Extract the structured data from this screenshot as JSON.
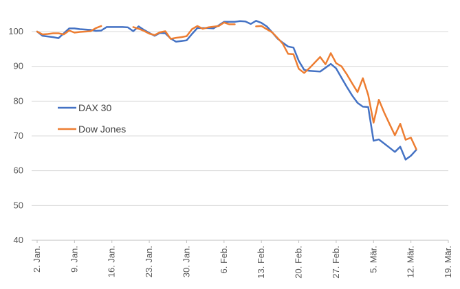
{
  "chart_data": {
    "type": "line",
    "title": "",
    "xlabel": "",
    "ylabel": "",
    "ylim": [
      40,
      100
    ],
    "yticks": [
      40,
      50,
      60,
      70,
      80,
      90,
      100
    ],
    "grid": "horizontal",
    "legend_position": "left-middle",
    "x_tick_labels": [
      "2. Jan.",
      "9. Jan.",
      "16. Jan.",
      "23. Jan.",
      "30. Jan.",
      "6. Feb.",
      "13. Feb.",
      "20. Feb.",
      "27. Feb.",
      "5. Mär.",
      "12. Mär.",
      "19. Mär."
    ],
    "x_range": [
      0,
      77
    ],
    "series": [
      {
        "name": "DAX 30",
        "color": "#4472C4",
        "points": [
          [
            0,
            100
          ],
          [
            1,
            98.8
          ],
          [
            2,
            98.6
          ],
          [
            3,
            98.4
          ],
          [
            4,
            98.1
          ],
          [
            5,
            99.5
          ],
          [
            6,
            100.9
          ],
          [
            7,
            100.9
          ],
          [
            8,
            100.7
          ],
          [
            9,
            100.6
          ],
          [
            10,
            100.5
          ],
          [
            11,
            100.2
          ],
          [
            12,
            100.3
          ],
          [
            13,
            101.3
          ],
          [
            14,
            101.3
          ],
          [
            15,
            101.3
          ],
          [
            16,
            101.3
          ],
          [
            17,
            101.2
          ],
          [
            18,
            100.1
          ],
          [
            19,
            101.5
          ],
          [
            20,
            100.5
          ],
          [
            21,
            99.6
          ],
          [
            22,
            98.8
          ],
          [
            23,
            99.6
          ],
          [
            24,
            99.5
          ],
          [
            25,
            98.0
          ],
          [
            26,
            97.1
          ],
          [
            27,
            97.3
          ],
          [
            28,
            97.5
          ],
          [
            29,
            99.3
          ],
          [
            30,
            101.0
          ],
          [
            31,
            101.0
          ],
          [
            32,
            101.0
          ],
          [
            33,
            100.9
          ],
          [
            34,
            101.8
          ],
          [
            35,
            102.8
          ],
          [
            36,
            102.8
          ],
          [
            37,
            102.8
          ],
          [
            38,
            103.0
          ],
          [
            39,
            102.9
          ],
          [
            40,
            102.2
          ],
          [
            41,
            103.1
          ],
          [
            42,
            102.5
          ],
          [
            43,
            101.5
          ],
          [
            44,
            99.8
          ],
          [
            45,
            98.0
          ],
          [
            46,
            96.8
          ],
          [
            47,
            95.7
          ],
          [
            48,
            95.4
          ],
          [
            49,
            91.6
          ],
          [
            50,
            89.0
          ],
          [
            51,
            88.7
          ],
          [
            52,
            88.6
          ],
          [
            53,
            88.5
          ],
          [
            54,
            89.6
          ],
          [
            55,
            90.7
          ],
          [
            56,
            89.4
          ],
          [
            57,
            86.7
          ],
          [
            58,
            84.1
          ],
          [
            59,
            81.6
          ],
          [
            60,
            79.5
          ],
          [
            61,
            78.4
          ],
          [
            62,
            78.3
          ],
          [
            63,
            68.6
          ],
          [
            64,
            69.0
          ],
          [
            65,
            67.8
          ],
          [
            66,
            66.6
          ],
          [
            67,
            65.4
          ],
          [
            68,
            66.9
          ],
          [
            69,
            63.2
          ],
          [
            70,
            64.3
          ],
          [
            71,
            66.0
          ]
        ]
      },
      {
        "name": "Dow Jones",
        "color": "#ED7D31",
        "points": [
          [
            0,
            100
          ],
          [
            1,
            99.2
          ],
          [
            2,
            99.3
          ],
          [
            3,
            99.5
          ],
          [
            4,
            99.5
          ],
          [
            5,
            99.2
          ],
          [
            6,
            100.3
          ],
          [
            7,
            99.7
          ],
          [
            8,
            99.9
          ],
          [
            9,
            100.0
          ],
          [
            10,
            100.1
          ],
          [
            11,
            101.0
          ],
          [
            12,
            101.6
          ],
          [
            18,
            101.3
          ],
          [
            19,
            100.8
          ],
          [
            20,
            100.2
          ],
          [
            21,
            99.4
          ],
          [
            22,
            99.0
          ],
          [
            23,
            99.8
          ],
          [
            24,
            100.1
          ],
          [
            25,
            97.9
          ],
          [
            26,
            98.2
          ],
          [
            27,
            98.4
          ],
          [
            28,
            98.7
          ],
          [
            29,
            100.7
          ],
          [
            30,
            101.6
          ],
          [
            31,
            100.8
          ],
          [
            32,
            101.2
          ],
          [
            33,
            101.4
          ],
          [
            34,
            101.6
          ],
          [
            35,
            102.6
          ],
          [
            36,
            102.1
          ],
          [
            37,
            102.1
          ],
          [
            41,
            101.5
          ],
          [
            42,
            101.6
          ],
          [
            43,
            100.7
          ],
          [
            44,
            99.8
          ],
          [
            45,
            98.2
          ],
          [
            46,
            96.5
          ],
          [
            47,
            93.6
          ],
          [
            48,
            93.5
          ],
          [
            49,
            89.3
          ],
          [
            50,
            88.1
          ],
          [
            51,
            89.5
          ],
          [
            52,
            91.1
          ],
          [
            53,
            92.7
          ],
          [
            54,
            90.6
          ],
          [
            55,
            93.8
          ],
          [
            56,
            90.9
          ],
          [
            57,
            90.0
          ],
          [
            58,
            87.7
          ],
          [
            59,
            85.1
          ],
          [
            60,
            82.6
          ],
          [
            61,
            86.6
          ],
          [
            62,
            81.8
          ],
          [
            63,
            73.8
          ],
          [
            64,
            80.4
          ],
          [
            65,
            76.7
          ],
          [
            66,
            73.4
          ],
          [
            67,
            70.2
          ],
          [
            68,
            73.5
          ],
          [
            69,
            68.9
          ],
          [
            70,
            69.5
          ],
          [
            71,
            66.2
          ]
        ]
      }
    ]
  }
}
